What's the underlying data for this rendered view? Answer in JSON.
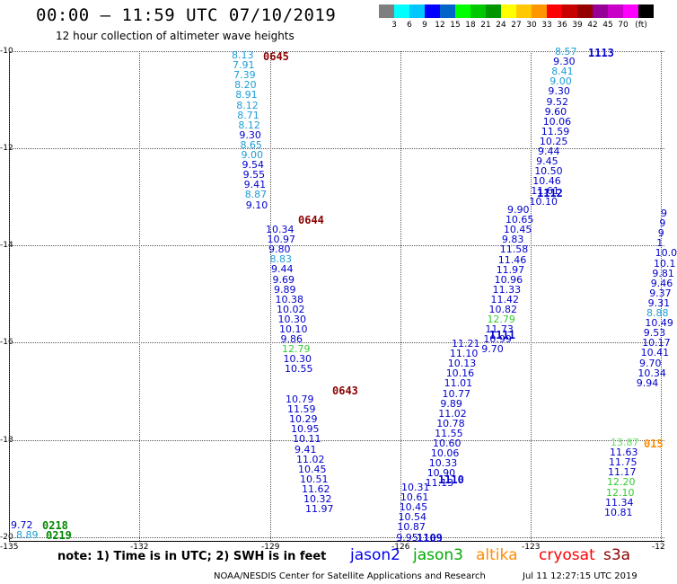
{
  "header": {
    "title": "00:00 – 11:59 UTC 07/10/2019",
    "subtitle": "12 hour collection of altimeter wave heights"
  },
  "color_scale": {
    "colors": [
      "#7f7f7f",
      "#00ffff",
      "#00c8ff",
      "#0000ff",
      "#0064c8",
      "#00ff00",
      "#00c800",
      "#009600",
      "#ffff00",
      "#ffc800",
      "#ff9600",
      "#ff0000",
      "#c80000",
      "#960000",
      "#960096",
      "#c800c8",
      "#ff00ff",
      "#000000"
    ],
    "labels": [
      "3",
      "6",
      "9",
      "12",
      "15",
      "18",
      "21",
      "24",
      "27",
      "30",
      "33",
      "36",
      "39",
      "42",
      "45",
      "70",
      "(ft)"
    ]
  },
  "axes": {
    "lat_labels": [
      "-10",
      "-12",
      "-14",
      "-16",
      "-18",
      "-20"
    ],
    "lon_labels": [
      "-135",
      "-132",
      "-129",
      "-126",
      "-123",
      "-12"
    ]
  },
  "tracks": [
    {
      "time_label": "0645",
      "time_color": "#8b0000",
      "values": [
        {
          "t": "8.13",
          "c": "#1e9ed6"
        },
        {
          "t": "7.91",
          "c": "#1e9ed6"
        },
        {
          "t": "7.39",
          "c": "#1e9ed6"
        },
        {
          "t": "8.20",
          "c": "#1e9ed6"
        },
        {
          "t": "8.91",
          "c": "#1e9ed6"
        },
        {
          "t": "8.12",
          "c": "#1e9ed6"
        },
        {
          "t": "8.71",
          "c": "#1e9ed6"
        },
        {
          "t": "8.12",
          "c": "#1e9ed6"
        },
        {
          "t": "9.30",
          "c": "#0000cc"
        },
        {
          "t": "8.65",
          "c": "#1e9ed6"
        },
        {
          "t": "9.00",
          "c": "#1e9ed6"
        },
        {
          "t": "9.54",
          "c": "#0000cc"
        },
        {
          "t": "9.55",
          "c": "#0000cc"
        },
        {
          "t": "9.41",
          "c": "#0000cc"
        },
        {
          "t": "8.87",
          "c": "#1e9ed6"
        },
        {
          "t": "9.10",
          "c": "#0000cc"
        }
      ]
    },
    {
      "time_label": "0644",
      "time_color": "#8b0000",
      "values": [
        {
          "t": "10.34",
          "c": "#0000cc"
        },
        {
          "t": "10.97",
          "c": "#0000cc"
        },
        {
          "t": "9.80",
          "c": "#0000cc"
        },
        {
          "t": "8.83",
          "c": "#1e9ed6"
        },
        {
          "t": "9.44",
          "c": "#0000cc"
        },
        {
          "t": "9.69",
          "c": "#0000cc"
        },
        {
          "t": "9.89",
          "c": "#0000cc"
        },
        {
          "t": "10.38",
          "c": "#0000cc"
        },
        {
          "t": "10.02",
          "c": "#0000cc"
        },
        {
          "t": "10.30",
          "c": "#0000cc"
        },
        {
          "t": "10.10",
          "c": "#0000cc"
        },
        {
          "t": "9.86",
          "c": "#0000cc"
        },
        {
          "t": "12.79",
          "c": "#33cc33"
        },
        {
          "t": "10.30",
          "c": "#0000cc"
        },
        {
          "t": "10.55",
          "c": "#0000cc"
        }
      ]
    },
    {
      "time_label": "0643",
      "time_color": "#8b0000",
      "values": [
        {
          "t": "10.79",
          "c": "#0000cc"
        },
        {
          "t": "11.59",
          "c": "#0000cc"
        },
        {
          "t": "10.29",
          "c": "#0000cc"
        },
        {
          "t": "10.95",
          "c": "#0000cc"
        },
        {
          "t": "10.11",
          "c": "#0000cc"
        },
        {
          "t": "9.41",
          "c": "#0000cc"
        },
        {
          "t": "11.02",
          "c": "#0000cc"
        },
        {
          "t": "10.45",
          "c": "#0000cc"
        },
        {
          "t": "10.51",
          "c": "#0000cc"
        },
        {
          "t": "11.62",
          "c": "#0000cc"
        },
        {
          "t": "10.32",
          "c": "#0000cc"
        },
        {
          "t": "11.97",
          "c": "#0000cc"
        }
      ]
    },
    {
      "time_label": "1113",
      "time_color": "#0000cc",
      "values": [
        {
          "t": "8.57",
          "c": "#1e9ed6"
        },
        {
          "t": "9.30",
          "c": "#0000cc"
        },
        {
          "t": "8.41",
          "c": "#1e9ed6"
        },
        {
          "t": "9.00",
          "c": "#1e9ed6"
        },
        {
          "t": "9.30",
          "c": "#0000cc"
        },
        {
          "t": "9.52",
          "c": "#0000cc"
        },
        {
          "t": "9.60",
          "c": "#0000cc"
        },
        {
          "t": "10.06",
          "c": "#0000cc"
        },
        {
          "t": "11.59",
          "c": "#0000cc"
        },
        {
          "t": "10.25",
          "c": "#0000cc"
        },
        {
          "t": "9.44",
          "c": "#0000cc"
        },
        {
          "t": "9.45",
          "c": "#0000cc"
        },
        {
          "t": "10.50",
          "c": "#0000cc"
        },
        {
          "t": "10.46",
          "c": "#0000cc"
        },
        {
          "t": "11.61",
          "c": "#0000cc"
        },
        {
          "t": "10.10",
          "c": "#0000cc"
        }
      ]
    },
    {
      "time_label": "1112",
      "time_color": "#0000cc",
      "values": [
        {
          "t": "9.90",
          "c": "#0000cc"
        },
        {
          "t": "10.65",
          "c": "#0000cc"
        },
        {
          "t": "10.45",
          "c": "#0000cc"
        },
        {
          "t": "9.83",
          "c": "#0000cc"
        },
        {
          "t": "11.58",
          "c": "#0000cc"
        },
        {
          "t": "11.46",
          "c": "#0000cc"
        },
        {
          "t": "11.97",
          "c": "#0000cc"
        },
        {
          "t": "10.96",
          "c": "#0000cc"
        },
        {
          "t": "11.33",
          "c": "#0000cc"
        },
        {
          "t": "11.42",
          "c": "#0000cc"
        },
        {
          "t": "10.82",
          "c": "#0000cc"
        },
        {
          "t": "12.79",
          "c": "#33cc33"
        },
        {
          "t": "11.73",
          "c": "#0000cc"
        },
        {
          "t": "10.99",
          "c": "#0000cc"
        },
        {
          "t": "9.70",
          "c": "#0000cc"
        }
      ]
    },
    {
      "time_label": "1111",
      "time_color": "#0000cc",
      "values": [
        {
          "t": "11.21",
          "c": "#0000cc"
        },
        {
          "t": "11.10",
          "c": "#0000cc"
        },
        {
          "t": "10.13",
          "c": "#0000cc"
        },
        {
          "t": "10.16",
          "c": "#0000cc"
        },
        {
          "t": "11.01",
          "c": "#0000cc"
        },
        {
          "t": "10.77",
          "c": "#0000cc"
        },
        {
          "t": "9.89",
          "c": "#0000cc"
        },
        {
          "t": "11.02",
          "c": "#0000cc"
        },
        {
          "t": "10.78",
          "c": "#0000cc"
        },
        {
          "t": "11.55",
          "c": "#0000cc"
        },
        {
          "t": "10.60",
          "c": "#0000cc"
        },
        {
          "t": "10.06",
          "c": "#0000cc"
        },
        {
          "t": "10.33",
          "c": "#0000cc"
        },
        {
          "t": "10.90",
          "c": "#0000cc"
        },
        {
          "t": "11.13",
          "c": "#0000cc"
        }
      ]
    },
    {
      "time_label": "1110",
      "time_color": "#0000cc",
      "values": [
        {
          "t": "10.31",
          "c": "#0000cc"
        },
        {
          "t": "10.61",
          "c": "#0000cc"
        },
        {
          "t": "10.45",
          "c": "#0000cc"
        },
        {
          "t": "10.54",
          "c": "#0000cc"
        },
        {
          "t": "10.87",
          "c": "#0000cc"
        },
        {
          "t": "9.95",
          "c": "#0000cc"
        }
      ]
    },
    {
      "time_label": "1109",
      "time_color": "#0000cc",
      "values": []
    },
    {
      "time_label": "",
      "time_color": "#0000cc",
      "values": [
        {
          "t": "9",
          "c": "#0000cc"
        },
        {
          "t": "9",
          "c": "#0000cc"
        },
        {
          "t": "9",
          "c": "#0000cc"
        },
        {
          "t": "1",
          "c": "#0000cc"
        },
        {
          "t": "10.0",
          "c": "#0000cc"
        },
        {
          "t": "10.1",
          "c": "#0000cc"
        },
        {
          "t": "9.81",
          "c": "#0000cc"
        },
        {
          "t": "9.46",
          "c": "#0000cc"
        },
        {
          "t": "9.37",
          "c": "#0000cc"
        },
        {
          "t": "9.31",
          "c": "#0000cc"
        },
        {
          "t": "8.88",
          "c": "#1e9ed6"
        },
        {
          "t": "10.49",
          "c": "#0000cc"
        },
        {
          "t": "9.53",
          "c": "#0000cc"
        },
        {
          "t": "10.17",
          "c": "#0000cc"
        },
        {
          "t": "10.41",
          "c": "#0000cc"
        },
        {
          "t": "9.70",
          "c": "#0000cc"
        },
        {
          "t": "10.34",
          "c": "#0000cc"
        },
        {
          "t": "9.94",
          "c": "#0000cc"
        }
      ]
    },
    {
      "time_label": "015",
      "time_color": "#ff8c00",
      "values": [
        {
          "t": "13.87",
          "c": "#66dd66"
        },
        {
          "t": "11.63",
          "c": "#0000cc"
        },
        {
          "t": "11.75",
          "c": "#0000cc"
        },
        {
          "t": "11.17",
          "c": "#0000cc"
        },
        {
          "t": "12.20",
          "c": "#33cc33"
        },
        {
          "t": "12.10",
          "c": "#33cc33"
        },
        {
          "t": "11.34",
          "c": "#0000cc"
        },
        {
          "t": "10.81",
          "c": "#0000cc"
        }
      ]
    },
    {
      "time_label": "0218",
      "time_color": "#008800",
      "values": [
        {
          "t": "9.72",
          "c": "#0000cc"
        }
      ]
    },
    {
      "time_label": "0219",
      "time_color": "#008800",
      "values": [
        {
          "t": "8.89",
          "c": "#1e9ed6"
        }
      ]
    }
  ],
  "footer": {
    "note": "note: 1) Time is in UTC; 2) SWH is in feet",
    "satellites": [
      {
        "name": "jason2",
        "color": "#0000ee"
      },
      {
        "name": "jason3",
        "color": "#00aa00"
      },
      {
        "name": "altika",
        "color": "#ff8c00"
      },
      {
        "name": "cryosat",
        "color": "#ff0000"
      },
      {
        "name": "s3a",
        "color": "#8b0000"
      }
    ],
    "credit": "NOAA/NESDIS Center for Satellite Applications and Research",
    "timestamp": "Jul 11 12:27:15 UTC 2019"
  }
}
